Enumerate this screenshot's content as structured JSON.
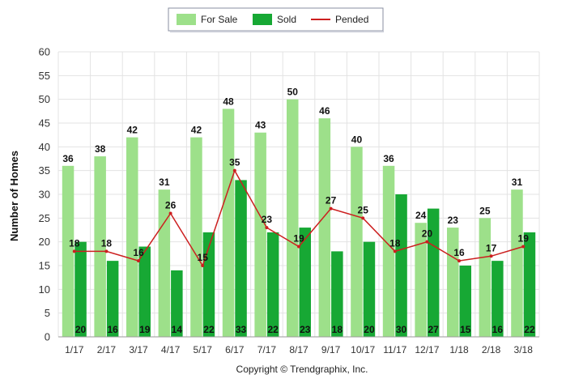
{
  "chart_data": {
    "type": "bar",
    "categories": [
      "1/17",
      "2/17",
      "3/17",
      "4/17",
      "5/17",
      "6/17",
      "7/17",
      "8/17",
      "9/17",
      "10/17",
      "11/17",
      "12/17",
      "1/18",
      "2/18",
      "3/18"
    ],
    "series": [
      {
        "name": "For Sale",
        "type": "bar",
        "color": "#9de08a",
        "values": [
          36,
          38,
          42,
          31,
          42,
          48,
          43,
          50,
          46,
          40,
          36,
          24,
          23,
          25,
          31
        ]
      },
      {
        "name": "Sold",
        "type": "bar",
        "color": "#17a834",
        "values": [
          20,
          16,
          19,
          14,
          22,
          33,
          22,
          23,
          18,
          20,
          30,
          27,
          15,
          16,
          22
        ]
      },
      {
        "name": "Pended",
        "type": "line",
        "color": "#cc1f1f",
        "values": [
          18,
          18,
          16,
          26,
          15,
          35,
          23,
          19,
          27,
          25,
          18,
          20,
          16,
          17,
          19
        ]
      }
    ],
    "ylabel": "Number of Homes",
    "xlabel": "",
    "ylim": [
      0,
      60
    ],
    "yticks": [
      0,
      5,
      10,
      15,
      20,
      25,
      30,
      35,
      40,
      45,
      50,
      55,
      60
    ],
    "grid": true,
    "legend_position": "top-center"
  },
  "footer": {
    "copyright": "Copyright © Trendgraphix, Inc."
  }
}
